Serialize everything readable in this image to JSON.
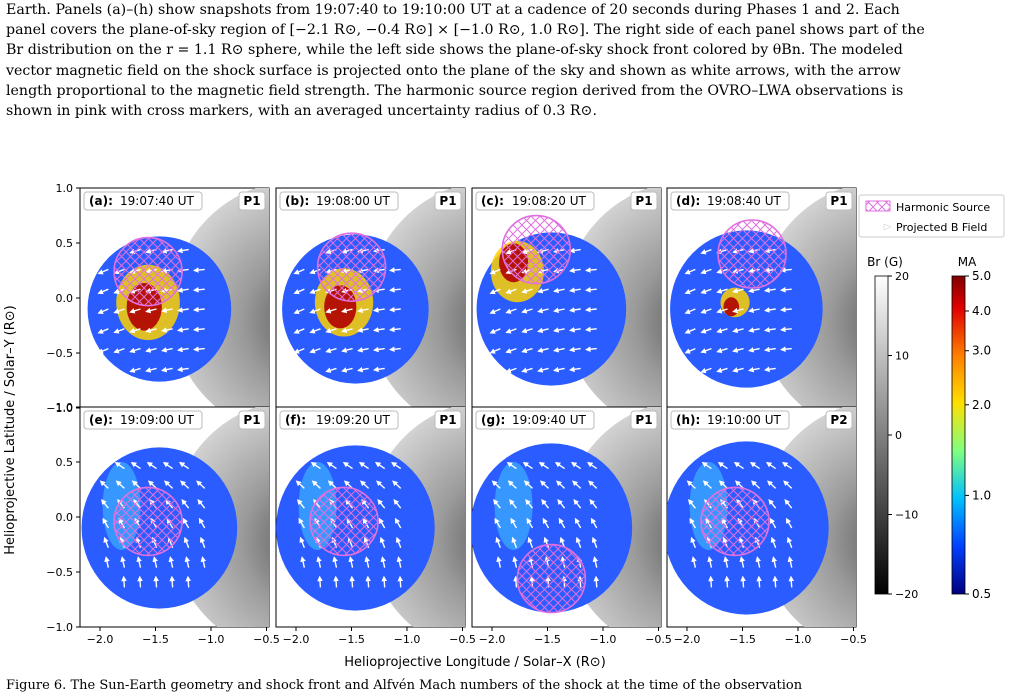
{
  "caption_top": {
    "line1": "Earth. Panels (a)–(h) show snapshots from 19:07:40 to 19:10:00 UT at a cadence of 20 seconds during Phases 1 and 2. Each",
    "line2": "panel covers the plane-of-sky region of [−2.1 R⊙, −0.4 R⊙] × [−1.0 R⊙, 1.0 R⊙]. The right side of each panel shows part of the",
    "line3": "Br distribution on the r = 1.1 R⊙ sphere, while the left side shows the plane-of-sky shock front colored by θBn. The modeled",
    "line4": "vector magnetic field on the shock surface is projected onto the plane of the sky and shown as white arrows, with the arrow",
    "line5": "length proportional to the magnetic field strength. The harmonic source region derived from the OVRO–LWA observations is",
    "line6": "shown in pink with cross markers, with an averaged uncertainty radius of 0.3 R⊙."
  },
  "figure": {
    "ylabel": "Helioprojective Latitude / Solar–Y (R⊙)",
    "xlabel": "Helioprojective Longitude / Solar–X (R⊙)",
    "yticks": [
      "1.0",
      "0.5",
      "0.0",
      "−0.5",
      "−1.0"
    ],
    "xticks": [
      "−2.0",
      "−1.5",
      "−1.0",
      "−0.5"
    ],
    "panels": [
      {
        "label": "(a):",
        "time": "19:07:40 UT",
        "phase": "P1"
      },
      {
        "label": "(b):",
        "time": "19:08:00 UT",
        "phase": "P1"
      },
      {
        "label": "(c):",
        "time": "19:08:20 UT",
        "phase": "P1"
      },
      {
        "label": "(d):",
        "time": "19:08:40 UT",
        "phase": "P1"
      },
      {
        "label": "(e):",
        "time": "19:09:00 UT",
        "phase": "P1"
      },
      {
        "label": "(f):",
        "time": "19:09:20 UT",
        "phase": "P1"
      },
      {
        "label": "(g):",
        "time": "19:09:40 UT",
        "phase": "P1"
      },
      {
        "label": "(h):",
        "time": "19:10:00 UT",
        "phase": "P2"
      }
    ],
    "legend": {
      "harmonic": "Harmonic Source",
      "projected_b": "Projected B Field"
    },
    "br_colorbar": {
      "title": "Br (G)",
      "ticks": [
        "20",
        "10",
        "0",
        "−10",
        "−20"
      ]
    },
    "ma_colorbar": {
      "title": "MA",
      "ticks": [
        "5.0",
        "4.0",
        "3.0",
        "2.0",
        "1.0",
        "0.5"
      ]
    },
    "colors": {
      "source": "#e070e0",
      "shock_base": "#2a5cff",
      "hot": "#b00000"
    }
  },
  "caption_bottom": "Figure 6. The Sun-Earth geometry and shock front and Alfvén Mach numbers of the shock at the time of the observation"
}
